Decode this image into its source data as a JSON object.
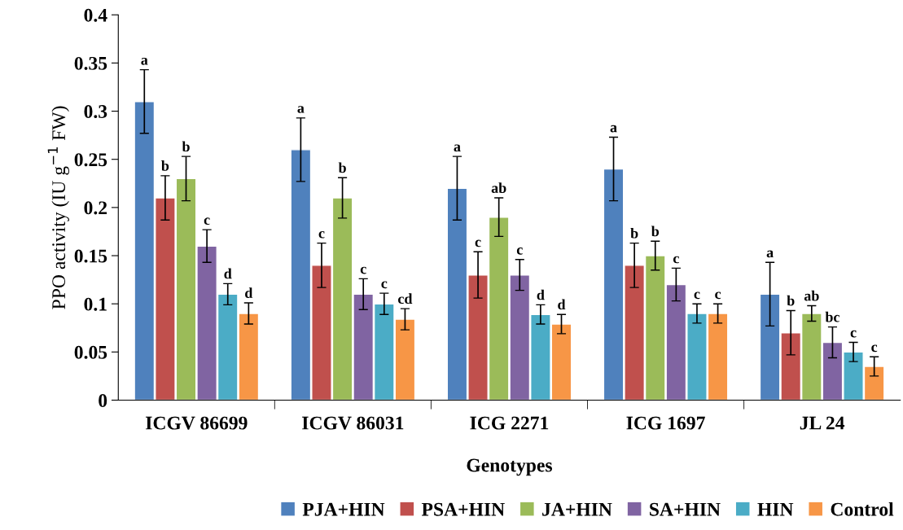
{
  "chart_data": {
    "type": "bar",
    "xlabel": "Genotypes",
    "ylabel": "PPO activity (IU g$^{−1}$ FW)",
    "categories": [
      "ICGV 86699",
      "ICGV 86031",
      "ICG 2271",
      "ICG 1697",
      "JL 24"
    ],
    "ylim": [
      0,
      0.4
    ],
    "yticks": [
      0,
      0.05,
      0.1,
      0.15,
      0.2,
      0.25,
      0.3,
      0.35,
      0.4
    ],
    "grid": false,
    "legend": "bottom",
    "series": [
      {
        "name": "PJA+HIN",
        "color": "#4f81bd",
        "values": [
          0.31,
          0.26,
          0.22,
          0.24,
          0.11
        ],
        "errors": [
          0.033,
          0.033,
          0.033,
          0.033,
          0.033
        ],
        "value_labels": [
          "a",
          "a",
          "a",
          "a",
          "a"
        ]
      },
      {
        "name": "PSA+HIN",
        "color": "#c0504d",
        "values": [
          0.21,
          0.14,
          0.13,
          0.14,
          0.07
        ],
        "errors": [
          0.023,
          0.023,
          0.024,
          0.023,
          0.023
        ],
        "value_labels": [
          "b",
          "c",
          "c",
          "b",
          "b"
        ]
      },
      {
        "name": "JA+HIN",
        "color": "#9bbb59",
        "values": [
          0.23,
          0.21,
          0.19,
          0.15,
          0.09
        ],
        "errors": [
          0.023,
          0.021,
          0.02,
          0.015,
          0.008
        ],
        "value_labels": [
          "b",
          "b",
          "ab",
          "b",
          "ab"
        ]
      },
      {
        "name": "SA+HIN",
        "color": "#8064a2",
        "values": [
          0.16,
          0.11,
          0.13,
          0.12,
          0.06
        ],
        "errors": [
          0.017,
          0.016,
          0.016,
          0.017,
          0.016
        ],
        "value_labels": [
          "c",
          "c",
          "c",
          "c",
          "bc"
        ]
      },
      {
        "name": "HIN",
        "color": "#4bacc6",
        "values": [
          0.11,
          0.1,
          0.089,
          0.09,
          0.05
        ],
        "errors": [
          0.011,
          0.011,
          0.01,
          0.01,
          0.01
        ],
        "value_labels": [
          "d",
          "c",
          "d",
          "c",
          "c"
        ]
      },
      {
        "name": "Control",
        "color": "#f79646",
        "values": [
          0.09,
          0.084,
          0.079,
          0.09,
          0.035
        ],
        "errors": [
          0.011,
          0.011,
          0.01,
          0.01,
          0.01
        ],
        "value_labels": [
          "d",
          "cd",
          "d",
          "c",
          "c"
        ]
      }
    ]
  }
}
